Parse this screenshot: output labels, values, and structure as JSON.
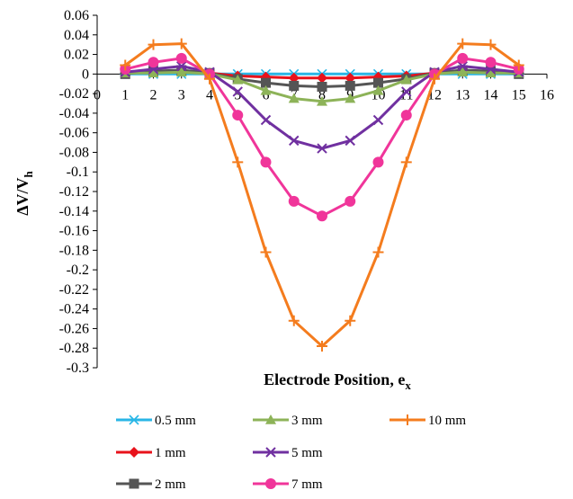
{
  "chart_data": {
    "type": "line",
    "xlabel": "Electrode Position, e",
    "xlabel_sub": "x",
    "ylabel": "ΔV/V",
    "ylabel_sub": "h",
    "xlim": [
      0,
      16
    ],
    "ylim": [
      -0.3,
      0.06
    ],
    "x_ticks": [
      0,
      1,
      2,
      3,
      4,
      5,
      6,
      7,
      8,
      9,
      10,
      11,
      12,
      13,
      14,
      15,
      16
    ],
    "y_ticks": [
      0.06,
      0.04,
      0.02,
      0,
      -0.02,
      -0.04,
      -0.06,
      -0.08,
      -0.1,
      -0.12,
      -0.14,
      -0.16,
      -0.18,
      -0.2,
      -0.22,
      -0.24,
      -0.26,
      -0.28,
      -0.3
    ],
    "x": [
      1,
      2,
      3,
      4,
      5,
      6,
      7,
      8,
      9,
      10,
      11,
      12,
      13,
      14,
      15
    ],
    "grid": false,
    "legend_position": "bottom",
    "series": [
      {
        "name": "0.5 mm",
        "color": "#29b6e6",
        "marker": "asterisk",
        "values": [
          0,
          0,
          0,
          0,
          0,
          0,
          0,
          0,
          0,
          0,
          0,
          0,
          0,
          0,
          0
        ]
      },
      {
        "name": "1 mm",
        "color": "#e8121b",
        "marker": "diamond",
        "values": [
          0.001,
          0.002,
          0.003,
          0.001,
          -0.002,
          -0.003,
          -0.004,
          -0.004,
          -0.004,
          -0.003,
          -0.002,
          0.001,
          0.003,
          0.002,
          0.001
        ]
      },
      {
        "name": "2 mm",
        "color": "#555555",
        "marker": "square",
        "values": [
          0,
          0.003,
          0.004,
          0.001,
          -0.005,
          -0.009,
          -0.012,
          -0.013,
          -0.012,
          -0.009,
          -0.005,
          0.001,
          0.004,
          0.003,
          0
        ]
      },
      {
        "name": "3 mm",
        "color": "#8db358",
        "marker": "triangle",
        "values": [
          0.001,
          0.001,
          0.002,
          0,
          -0.006,
          -0.017,
          -0.025,
          -0.028,
          -0.025,
          -0.017,
          -0.006,
          0,
          0.002,
          0.001,
          0.001
        ]
      },
      {
        "name": "5 mm",
        "color": "#7030a0",
        "marker": "x",
        "values": [
          0.002,
          0.005,
          0.008,
          0.002,
          -0.018,
          -0.047,
          -0.068,
          -0.076,
          -0.068,
          -0.047,
          -0.018,
          0.002,
          0.008,
          0.005,
          0.002
        ]
      },
      {
        "name": "7 mm",
        "color": "#f0359a",
        "marker": "circle",
        "values": [
          0.005,
          0.012,
          0.016,
          0,
          -0.042,
          -0.09,
          -0.13,
          -0.145,
          -0.13,
          -0.09,
          -0.042,
          0,
          0.016,
          0.012,
          0.005
        ]
      },
      {
        "name": "10 mm",
        "color": "#f47c1e",
        "marker": "plus",
        "values": [
          0.009,
          0.03,
          0.031,
          -0.005,
          -0.09,
          -0.182,
          -0.252,
          -0.278,
          -0.252,
          -0.182,
          -0.09,
          -0.005,
          0.031,
          0.03,
          0.009
        ]
      }
    ]
  }
}
